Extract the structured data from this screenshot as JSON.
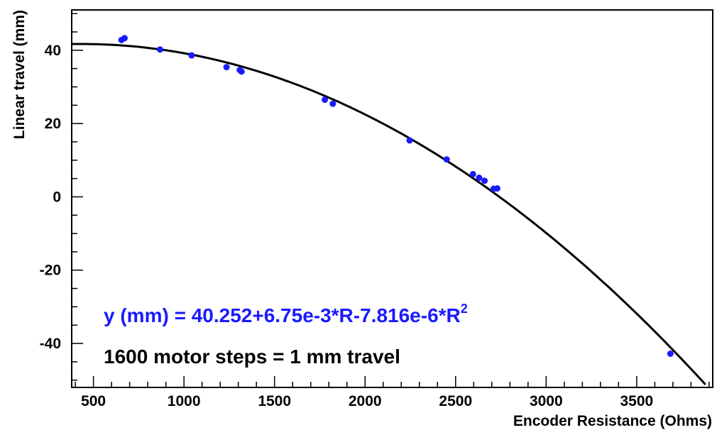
{
  "chart_data": {
    "type": "scatter",
    "title": "",
    "xlabel": "Encoder Resistance (Ohms)",
    "ylabel": "Linear travel (mm)",
    "xlim": [
      380,
      3920
    ],
    "ylim": [
      -52,
      51
    ],
    "x_ticks": [
      500,
      1000,
      1500,
      2000,
      2500,
      3000,
      3500
    ],
    "y_ticks": [
      -40,
      -20,
      0,
      20,
      40
    ],
    "x_tick_labels": [
      "500",
      "1000",
      "1500",
      "2000",
      "2500",
      "3000",
      "3500"
    ],
    "y_tick_labels": [
      "-40",
      "-20",
      "0",
      "20",
      "40"
    ],
    "grid": false,
    "series": [
      {
        "type": "scatter",
        "color": "#1a1aff",
        "points": [
          {
            "x": 655,
            "y": 42.8
          },
          {
            "x": 672,
            "y": 43.3
          },
          {
            "x": 868,
            "y": 40.2
          },
          {
            "x": 1042,
            "y": 38.6
          },
          {
            "x": 1235,
            "y": 35.4
          },
          {
            "x": 1308,
            "y": 34.6
          },
          {
            "x": 1318,
            "y": 34.2
          },
          {
            "x": 1778,
            "y": 26.5
          },
          {
            "x": 1822,
            "y": 25.4
          },
          {
            "x": 2246,
            "y": 15.4
          },
          {
            "x": 2451,
            "y": 10.2
          },
          {
            "x": 2596,
            "y": 6.2
          },
          {
            "x": 2630,
            "y": 5.2
          },
          {
            "x": 2660,
            "y": 4.4
          },
          {
            "x": 2710,
            "y": 2.2
          },
          {
            "x": 2730,
            "y": 2.3
          },
          {
            "x": 3686,
            "y": -42.8
          }
        ]
      },
      {
        "type": "line",
        "color": "#000000",
        "fit": {
          "a": 40.252,
          "b": 0.00675,
          "c": -7.816e-06
        },
        "x_range": [
          380,
          3880
        ]
      }
    ],
    "annotations": [
      {
        "id": "fit",
        "text": "y (mm) = 40.252+6.75e-3*R-7.816e-6*R",
        "superscript": "2",
        "color": "#1a1aff"
      },
      {
        "id": "steps",
        "text": "1600 motor steps = 1 mm travel",
        "color": "#000000"
      }
    ]
  }
}
